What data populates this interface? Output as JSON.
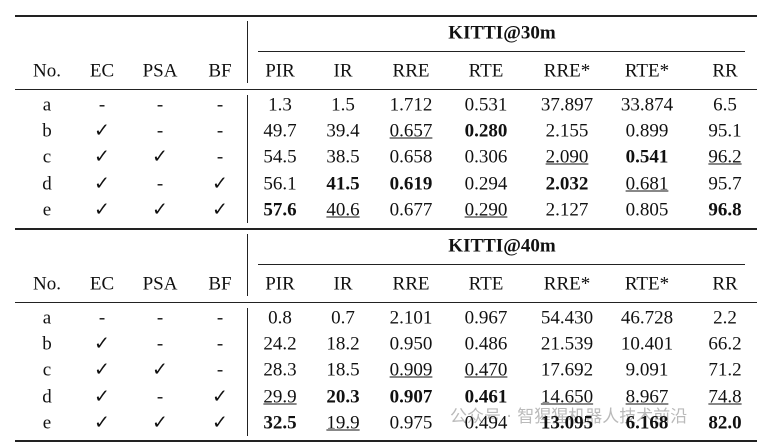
{
  "tables": [
    {
      "group": "KITTI@30m",
      "columns": [
        "No.",
        "EC",
        "PSA",
        "BF",
        "PIR",
        "IR",
        "RRE",
        "RTE",
        "RRE*",
        "RTE*",
        "RR"
      ],
      "rows": [
        [
          "a",
          "-",
          "-",
          "-",
          "1.3",
          "1.5",
          "1.712",
          "0.531",
          "37.897",
          "33.874",
          "6.5"
        ],
        [
          "b",
          "✓",
          "-",
          "-",
          "49.7",
          "39.4",
          {
            "text": "0.657",
            "underline": true
          },
          {
            "text": "0.280",
            "bold": true
          },
          "2.155",
          "0.899",
          "95.1"
        ],
        [
          "c",
          "✓",
          "✓",
          "-",
          "54.5",
          "38.5",
          "0.658",
          "0.306",
          {
            "text": "2.090",
            "underline": true
          },
          {
            "text": "0.541",
            "bold": true
          },
          {
            "text": "96.2",
            "underline": true
          }
        ],
        [
          "d",
          "✓",
          "-",
          "✓",
          "56.1",
          {
            "text": "41.5",
            "bold": true
          },
          {
            "text": "0.619",
            "bold": true
          },
          "0.294",
          {
            "text": "2.032",
            "bold": true
          },
          {
            "text": "0.681",
            "underline": true
          },
          "95.7"
        ],
        [
          "e",
          "✓",
          "✓",
          "✓",
          {
            "text": "57.6",
            "bold": true
          },
          {
            "text": "40.6",
            "underline": true
          },
          "0.677",
          {
            "text": "0.290",
            "underline": true
          },
          "2.127",
          "0.805",
          {
            "text": "96.8",
            "bold": true
          }
        ]
      ]
    },
    {
      "group": "KITTI@40m",
      "columns": [
        "No.",
        "EC",
        "PSA",
        "BF",
        "PIR",
        "IR",
        "RRE",
        "RTE",
        "RRE*",
        "RTE*",
        "RR"
      ],
      "rows": [
        [
          "a",
          "-",
          "-",
          "-",
          "0.8",
          "0.7",
          "2.101",
          "0.967",
          "54.430",
          "46.728",
          "2.2"
        ],
        [
          "b",
          "✓",
          "-",
          "-",
          "24.2",
          "18.2",
          "0.950",
          "0.486",
          "21.539",
          "10.401",
          "66.2"
        ],
        [
          "c",
          "✓",
          "✓",
          "-",
          "28.3",
          "18.5",
          {
            "text": "0.909",
            "underline": true
          },
          {
            "text": "0.470",
            "underline": true
          },
          "17.692",
          "9.091",
          "71.2"
        ],
        [
          "d",
          "✓",
          "-",
          "✓",
          {
            "text": "29.9",
            "underline": true
          },
          {
            "text": "20.3",
            "bold": true
          },
          {
            "text": "0.907",
            "bold": true
          },
          {
            "text": "0.461",
            "bold": true
          },
          {
            "text": "14.650",
            "underline": true
          },
          {
            "text": "8.967",
            "underline": true
          },
          {
            "text": "74.8",
            "underline": true
          }
        ],
        [
          "e",
          "✓",
          "✓",
          "✓",
          {
            "text": "32.5",
            "bold": true
          },
          {
            "text": "19.9",
            "underline": true
          },
          "0.975",
          "0.494",
          {
            "text": "13.095",
            "bold": true
          },
          {
            "text": "6.168",
            "bold": true
          },
          {
            "text": "82.0",
            "bold": true
          }
        ]
      ]
    }
  ],
  "watermark": "公众号 · 智猩猩机器人技术前沿"
}
